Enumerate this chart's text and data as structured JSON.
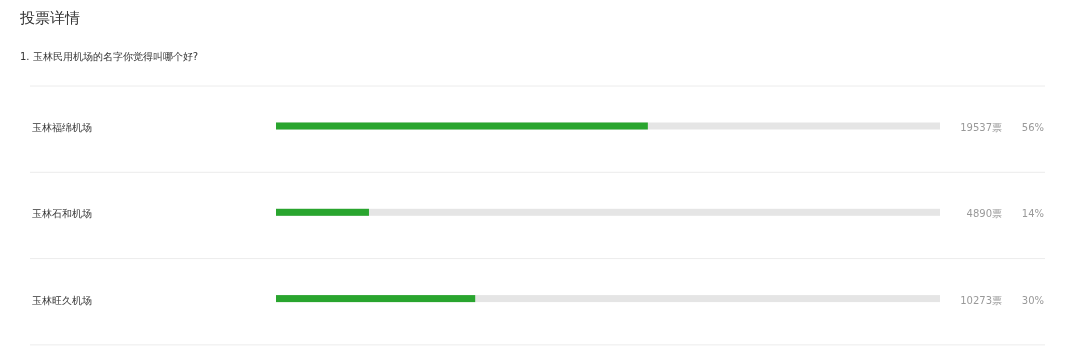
{
  "chart_data": {
    "type": "bar",
    "orientation": "horizontal",
    "title": "投票详情",
    "subtitle": "1. 玉林民用机场的名字你觉得叫哪个好?",
    "categories": [
      "玉林福绵机场",
      "玉林石和机场",
      "玉林旺久机场"
    ],
    "values": [
      56,
      14,
      30
    ],
    "value_labels": [
      "56%",
      "14%",
      "30%"
    ],
    "annotations": [
      "19537票",
      "4890票",
      "10273票"
    ],
    "color": "#29a52e",
    "xlim": [
      0,
      100
    ]
  }
}
